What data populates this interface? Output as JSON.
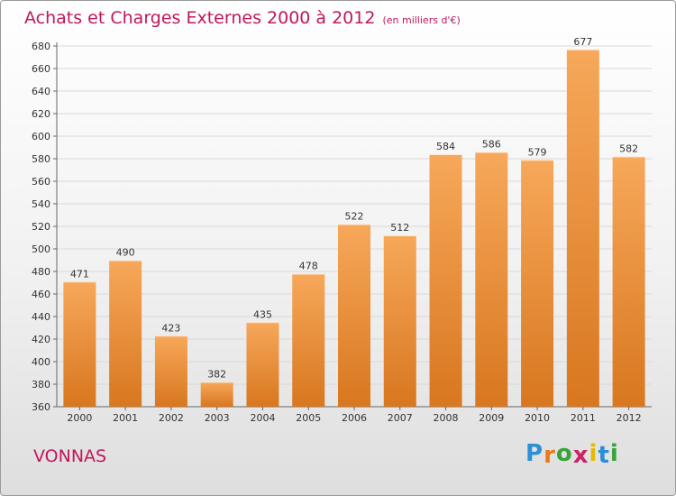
{
  "title": "Achats et Charges Externes 2000 à 2012",
  "subtitle": "(en milliers d'€)",
  "commune": "VONNAS",
  "logo": {
    "letters": [
      "P",
      "r",
      "o",
      "x",
      "i",
      "t",
      "i"
    ],
    "colors": [
      "#2a8fd6",
      "#e87a1c",
      "#3aa23a",
      "#cc2266",
      "#e8b800",
      "#2a8fd6",
      "#3aa23a"
    ]
  },
  "colors": {
    "title": "#c0175d",
    "bar_light": "#f7a85a",
    "bar_dark": "#d8771f"
  },
  "chart_data": {
    "type": "bar",
    "title": "Achats et Charges Externes 2000 à 2012",
    "subtitle": "(en milliers d'€)",
    "categories": [
      "2000",
      "2001",
      "2002",
      "2003",
      "2004",
      "2005",
      "2006",
      "2007",
      "2008",
      "2009",
      "2010",
      "2011",
      "2012"
    ],
    "values": [
      471,
      490,
      423,
      382,
      435,
      478,
      522,
      512,
      584,
      586,
      579,
      677,
      582
    ],
    "ylim": [
      360,
      680
    ],
    "yticks": [
      360,
      380,
      400,
      420,
      440,
      460,
      480,
      500,
      520,
      540,
      560,
      580,
      600,
      620,
      640,
      660,
      680
    ],
    "grid": true,
    "data_labels": true
  }
}
